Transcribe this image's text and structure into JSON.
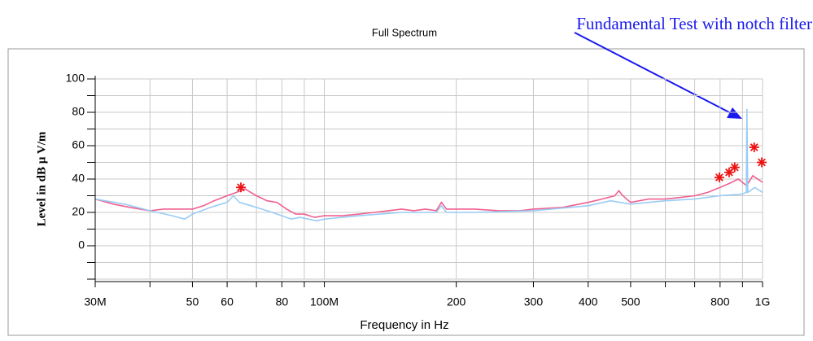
{
  "chart_data": {
    "type": "line",
    "title": "Full Spectrum",
    "annotation": "Fundamental Test with notch filter",
    "xlabel": "Frequency in Hz",
    "ylabel": "Level in dB µ V/m",
    "log_x": true,
    "grid": true,
    "xlim": [
      30000000,
      1000000000
    ],
    "ylim": [
      -20,
      100
    ],
    "xticks": [
      {
        "value": 30000000,
        "label": "30M"
      },
      {
        "value": 50000000,
        "label": "50"
      },
      {
        "value": 60000000,
        "label": "60"
      },
      {
        "value": 80000000,
        "label": "80"
      },
      {
        "value": 100000000,
        "label": "100M"
      },
      {
        "value": 200000000,
        "label": "200"
      },
      {
        "value": 300000000,
        "label": "300"
      },
      {
        "value": 400000000,
        "label": "400"
      },
      {
        "value": 500000000,
        "label": "500"
      },
      {
        "value": 800000000,
        "label": "800"
      },
      {
        "value": 1000000000,
        "label": "1G"
      }
    ],
    "minor_xticks": [
      40000000,
      70000000,
      90000000,
      600000000,
      700000000,
      900000000
    ],
    "yticks": [
      0,
      20,
      40,
      60,
      80,
      100
    ],
    "minor_yticks": [
      -20,
      -10,
      10,
      30,
      50,
      70,
      90
    ],
    "series": [
      {
        "color": "#f06090",
        "x": [
          30000000.0,
          33000000.0,
          36000000.0,
          40000000.0,
          43000000.0,
          46000000.0,
          50000000.0,
          53000000.0,
          56000000.0,
          60000000.0,
          63000000.0,
          66000000.0,
          70000000.0,
          74000000.0,
          78000000.0,
          82000000.0,
          86000000.0,
          90000000.0,
          95000000.0,
          100000000.0,
          110000000.0,
          120000000.0,
          130000000.0,
          140000000.0,
          150000000.0,
          160000000.0,
          170000000.0,
          180000000.0,
          185000000.0,
          190000000.0,
          200000000.0,
          220000000.0,
          250000000.0,
          280000000.0,
          300000000.0,
          350000000.0,
          400000000.0,
          430000000.0,
          460000000.0,
          470000000.0,
          480000000.0,
          500000000.0,
          550000000.0,
          600000000.0,
          650000000.0,
          700000000.0,
          750000000.0,
          800000000.0,
          850000000.0,
          880000000.0,
          920000000.0,
          950000000.0,
          1000000000.0
        ],
        "values": [
          28,
          25,
          23,
          21,
          22,
          22,
          22,
          24,
          27,
          30,
          32,
          34,
          30,
          27,
          26,
          22,
          19,
          19,
          17,
          18,
          18,
          19,
          20,
          21,
          22,
          21,
          22,
          21,
          26,
          22,
          22,
          22,
          21,
          21,
          22,
          23,
          26,
          28,
          30,
          33,
          30,
          26,
          28,
          28,
          29,
          30,
          32,
          35,
          38,
          40,
          36,
          42,
          38
        ]
      },
      {
        "color": "#99ccf5",
        "x": [
          30000000.0,
          35000000.0,
          40000000.0,
          45000000.0,
          48000000.0,
          50000000.0,
          55000000.0,
          60000000.0,
          62000000.0,
          64000000.0,
          68000000.0,
          72000000.0,
          76000000.0,
          80000000.0,
          84000000.0,
          88000000.0,
          92000000.0,
          96000000.0,
          100000000.0,
          120000000.0,
          150000000.0,
          180000000.0,
          185000000.0,
          190000000.0,
          220000000.0,
          300000000.0,
          400000000.0,
          450000000.0,
          500000000.0,
          600000000.0,
          700000000.0,
          800000000.0,
          900000000.0,
          918000000.0,
          921000000.0,
          925000000.0,
          960000000.0,
          1000000000.0
        ],
        "values": [
          28,
          25,
          21,
          18,
          16,
          19,
          23,
          26,
          30,
          26,
          24,
          22,
          20,
          18,
          16,
          17,
          16,
          15,
          16,
          18,
          20,
          20,
          24,
          20,
          20,
          21,
          24,
          27,
          25,
          27,
          28,
          30,
          31,
          32,
          82,
          32,
          35,
          32
        ]
      }
    ],
    "markers": {
      "color": "#ee1111",
      "x": [
        64500000,
        797000000,
        839000000,
        864000000,
        957000000,
        996000000
      ],
      "values": [
        35,
        41,
        44,
        47,
        59,
        50
      ]
    }
  }
}
